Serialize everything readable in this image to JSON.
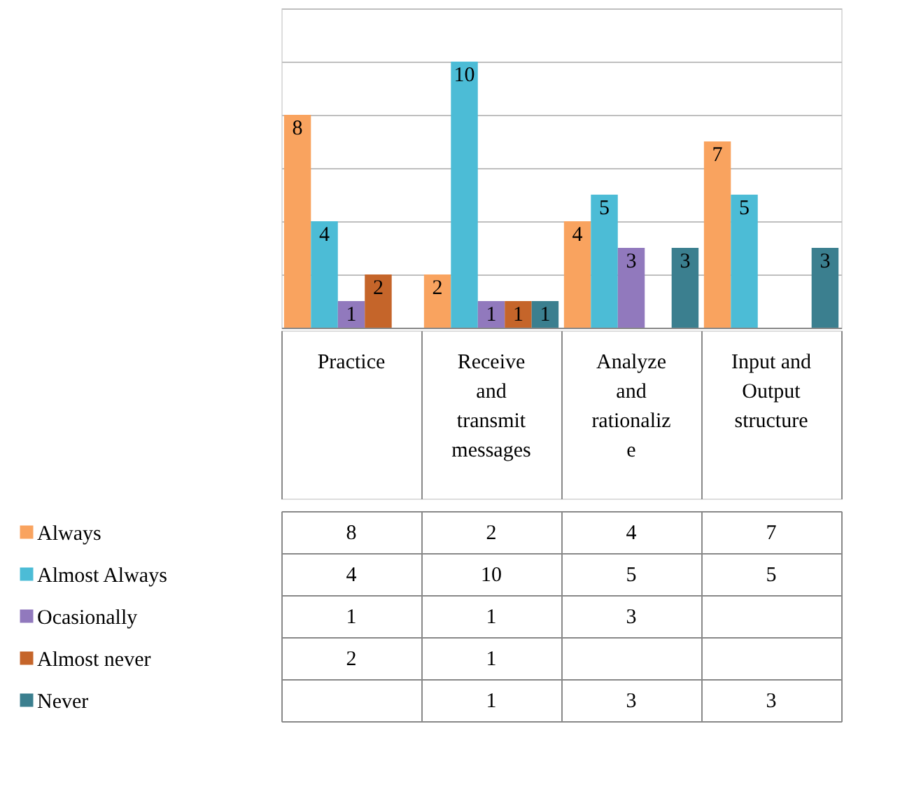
{
  "chart_data": {
    "type": "bar",
    "categories": [
      "Practice",
      "Receive and transmit messages",
      "Analyze and rationalize",
      "Input and Output structure"
    ],
    "series": [
      {
        "name": "Always",
        "color": "#f9a35f",
        "values": [
          8,
          2,
          4,
          7
        ],
        "value_labels": [
          "8",
          "2",
          "4",
          "7"
        ]
      },
      {
        "name": "Almost Always",
        "color": "#4cbcd6",
        "values": [
          4,
          10,
          5,
          5
        ],
        "value_labels": [
          "4",
          "10",
          "5",
          "5"
        ]
      },
      {
        "name": "Ocasionally",
        "color": "#9179bd",
        "values": [
          1,
          1,
          3,
          null
        ],
        "value_labels": [
          "1",
          "1",
          "3",
          null
        ]
      },
      {
        "name": "Almost never",
        "color": "#c5652a",
        "values": [
          2,
          1,
          null,
          null
        ],
        "value_labels": [
          "2",
          "1",
          null,
          null
        ]
      },
      {
        "name": "Never",
        "color": "#3b7f8f",
        "values": [
          null,
          1,
          3,
          3
        ],
        "value_labels": [
          null,
          "1",
          "3",
          "3"
        ]
      }
    ],
    "ylim": [
      0,
      12
    ],
    "tick_labels": false,
    "grid": "y",
    "data_labels": true,
    "legend": "bottom left"
  }
}
